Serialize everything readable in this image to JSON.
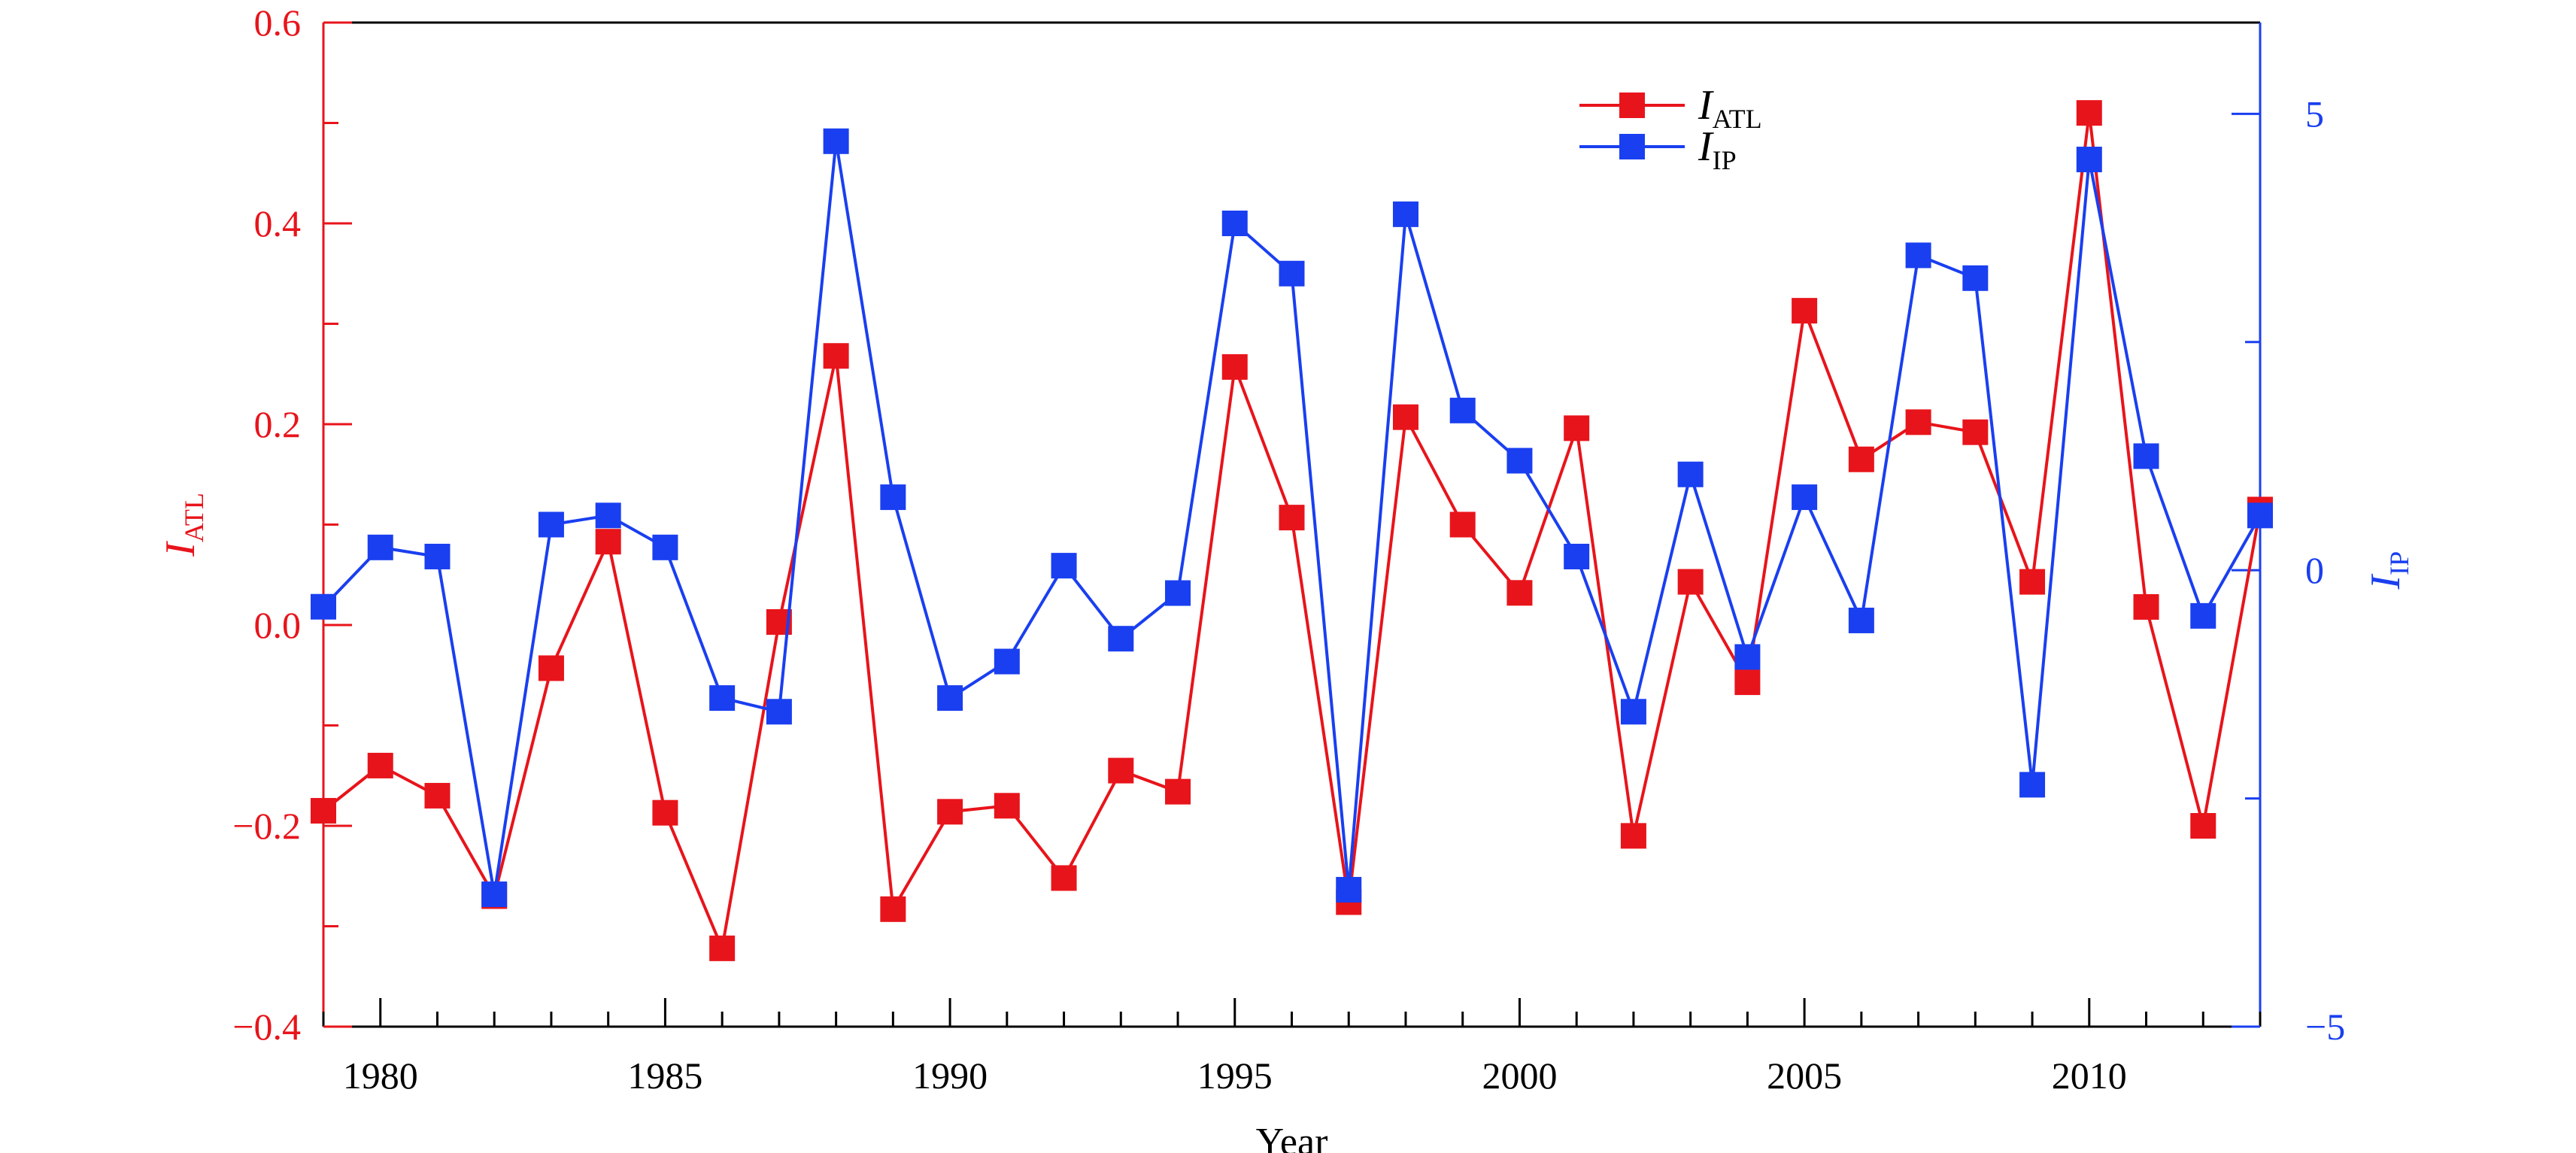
{
  "chart_data": {
    "type": "line",
    "xlabel": "Year",
    "x": [
      1979,
      1980,
      1981,
      1982,
      1983,
      1984,
      1985,
      1986,
      1987,
      1988,
      1989,
      1990,
      1991,
      1992,
      1993,
      1994,
      1995,
      1996,
      1997,
      1998,
      1999,
      2000,
      2001,
      2002,
      2003,
      2004,
      2005,
      2006,
      2007,
      2008,
      2009,
      2010,
      2011,
      2012,
      2013
    ],
    "xlim": [
      1979,
      2013
    ],
    "x_ticks": [
      1980,
      1985,
      1990,
      1995,
      2000,
      2005,
      2010
    ],
    "y_left": {
      "label_main": "I",
      "label_sub": "ATL",
      "lim": [
        -0.4,
        0.6
      ],
      "ticks": [
        "−0.4",
        "−0.2",
        "0.0",
        "0.2",
        "0.4",
        "0.6"
      ],
      "color": "#e8141b"
    },
    "y_right": {
      "label_main": "I",
      "label_sub": "IP",
      "lim": [
        -5,
        6
      ],
      "ticks": [
        "−5",
        "0",
        "5"
      ],
      "color": "#1a3ff0"
    },
    "series": [
      {
        "name_main": "I",
        "name_sub": "ATL",
        "axis": "left",
        "color": "#e8141b",
        "values": [
          -0.185,
          -0.14,
          -0.17,
          -0.27,
          -0.043,
          0.083,
          -0.187,
          -0.322,
          0.003,
          0.268,
          -0.283,
          -0.186,
          -0.18,
          -0.252,
          -0.145,
          -0.166,
          0.257,
          0.107,
          -0.276,
          0.207,
          0.1,
          0.032,
          0.196,
          -0.21,
          0.043,
          -0.057,
          0.313,
          0.165,
          0.202,
          0.192,
          0.043,
          0.51,
          0.018,
          -0.2,
          0.115
        ]
      },
      {
        "name_main": "I",
        "name_sub": "IP",
        "axis": "right",
        "color": "#1a3ff0",
        "values": [
          -0.4,
          0.25,
          0.15,
          -3.55,
          0.5,
          0.6,
          0.25,
          -1.4,
          -1.55,
          4.7,
          0.8,
          -1.4,
          -1.0,
          0.05,
          -0.75,
          -0.25,
          3.8,
          3.25,
          -3.5,
          3.9,
          1.75,
          1.2,
          0.15,
          -1.55,
          1.05,
          -0.95,
          0.8,
          -0.55,
          3.45,
          3.2,
          -2.35,
          4.5,
          1.25,
          -0.5,
          0.6
        ]
      }
    ],
    "legend_position": "top-right"
  }
}
